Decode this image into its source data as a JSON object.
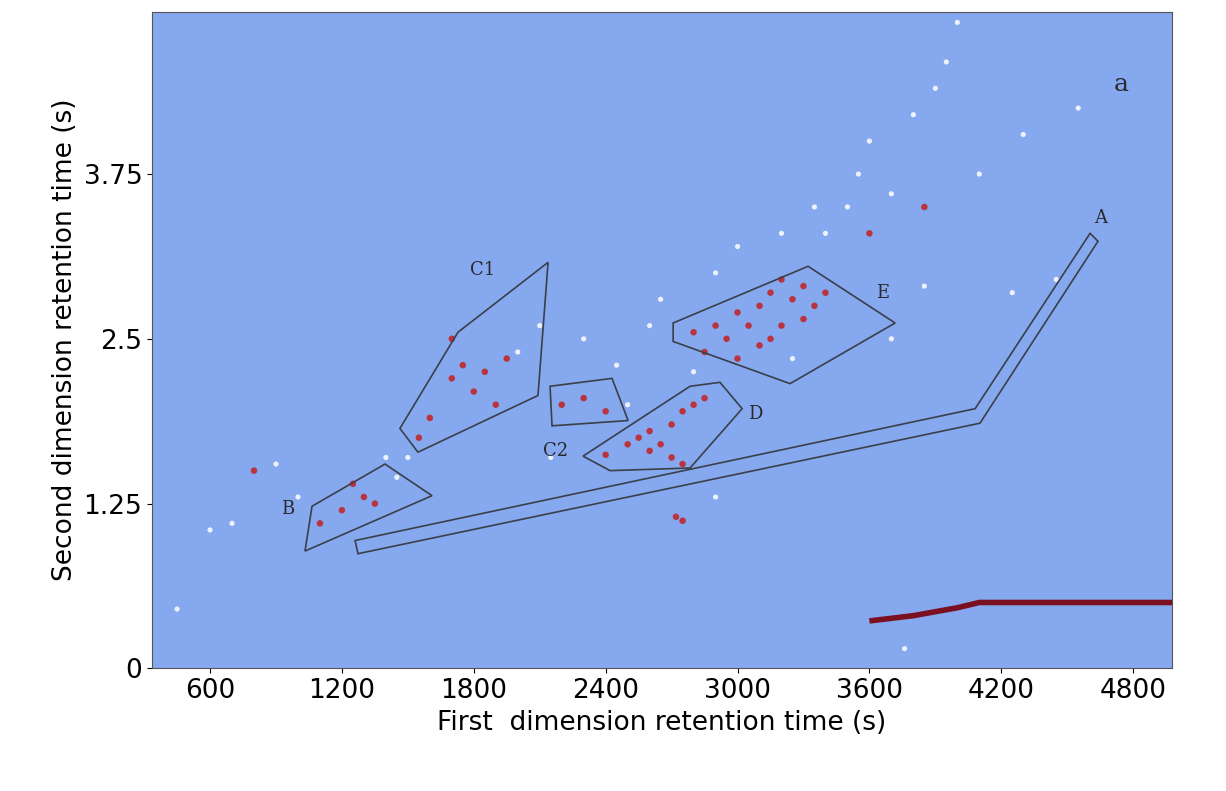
{
  "chart_data": {
    "type": "scatter",
    "panel_label": "a",
    "x_label": "First  dimension retention time (s)",
    "y_label": "Second dimension retention time (s)",
    "xlim": [
      336,
      4977
    ],
    "ylim": [
      0,
      4.98
    ],
    "xticks": [
      600,
      1200,
      1800,
      2400,
      3000,
      3600,
      4200,
      4800
    ],
    "yticks": [
      0,
      1.25,
      2.5,
      3.75
    ],
    "grid": false,
    "regions": [
      {
        "name": "A",
        "label_x": 4650,
        "label_y": 3.42,
        "x": [
          1260,
          4081,
          4604,
          4640,
          4103,
          1273
        ],
        "y": [
          0.97,
          1.97,
          3.3,
          3.24,
          1.86,
          0.87
        ]
      },
      {
        "name": "B",
        "label_x": 955,
        "label_y": 1.21,
        "x": [
          1032,
          1064,
          1396,
          1610
        ],
        "y": [
          0.89,
          1.23,
          1.55,
          1.31
        ]
      },
      {
        "name": "C1",
        "label_x": 1838,
        "label_y": 3.02,
        "x": [
          1464,
          1728,
          2138,
          2092,
          1546
        ],
        "y": [
          1.82,
          2.55,
          3.08,
          2.07,
          1.64
        ]
      },
      {
        "name": "C2",
        "label_x": 2174,
        "label_y": 1.65,
        "x": [
          2147,
          2429,
          2502,
          2156
        ],
        "y": [
          2.14,
          2.2,
          1.88,
          1.84
        ]
      },
      {
        "name": "D",
        "label_x": 3080,
        "label_y": 1.93,
        "x": [
          2297,
          2784,
          2920,
          3021,
          2784,
          2420
        ],
        "y": [
          1.61,
          2.14,
          2.17,
          1.97,
          1.52,
          1.5
        ]
      },
      {
        "name": "E",
        "label_x": 3660,
        "label_y": 2.85,
        "x": [
          2707,
          3321,
          3717,
          3239,
          2707
        ],
        "y": [
          2.62,
          3.05,
          2.62,
          2.16,
          2.48
        ]
      }
    ],
    "region_color": "#3a3f4a",
    "strong_spots": {
      "color": "#c0282d",
      "x": [
        2800,
        2900,
        2950,
        3000,
        3050,
        3100,
        3150,
        3200,
        3250,
        3300,
        3350,
        3100,
        3000,
        3200,
        3400,
        2850,
        3150,
        3300,
        2400,
        2500,
        2550,
        2600,
        2650,
        2700,
        2750,
        2800,
        2700,
        2600,
        2750,
        2850,
        1600,
        1700,
        1750,
        1800,
        1850,
        1900,
        1950,
        1700,
        1550,
        2200,
        2300,
        2400,
        1100,
        1200,
        1300,
        1350,
        1250,
        2750,
        2720,
        800,
        3600,
        3850
      ],
      "y": [
        2.55,
        2.6,
        2.5,
        2.7,
        2.6,
        2.75,
        2.85,
        2.95,
        2.8,
        2.9,
        2.75,
        2.45,
        2.35,
        2.6,
        2.85,
        2.4,
        2.5,
        2.65,
        1.62,
        1.7,
        1.75,
        1.8,
        1.7,
        1.85,
        1.95,
        2.0,
        1.6,
        1.65,
        1.55,
        2.05,
        1.9,
        2.2,
        2.3,
        2.1,
        2.25,
        2.0,
        2.35,
        2.5,
        1.75,
        2.0,
        2.05,
        1.95,
        1.1,
        1.2,
        1.3,
        1.25,
        1.4,
        1.12,
        1.15,
        1.5,
        3.3,
        3.5
      ]
    },
    "weak_spots": {
      "color": "#ffffff",
      "x": [
        600,
        700,
        900,
        1400,
        1450,
        2000,
        2100,
        2300,
        2450,
        2600,
        2650,
        2900,
        3000,
        3200,
        3400,
        3500,
        3550,
        3700,
        3800,
        3900,
        3950,
        4000,
        4250,
        4100,
        4300,
        4450,
        4550,
        3850,
        3700,
        3600,
        1000,
        1500,
        2150,
        2500,
        3350,
        2800,
        3250,
        450,
        3760,
        2900
      ],
      "y": [
        1.05,
        1.1,
        1.55,
        1.6,
        1.45,
        2.4,
        2.6,
        2.5,
        2.3,
        2.6,
        2.8,
        3.0,
        3.2,
        3.3,
        3.3,
        3.5,
        3.75,
        3.6,
        4.2,
        4.4,
        4.6,
        4.9,
        2.85,
        3.75,
        4.05,
        2.95,
        4.25,
        2.9,
        2.5,
        4.0,
        1.3,
        1.6,
        1.6,
        2.0,
        3.5,
        2.25,
        2.35,
        0.45,
        0.15,
        1.3
      ]
    },
    "bleed": {
      "color": "#7a1020",
      "x": [
        3600,
        3800,
        4000,
        4100,
        4977
      ],
      "y": [
        0.36,
        0.4,
        0.46,
        0.5,
        0.5
      ]
    }
  }
}
